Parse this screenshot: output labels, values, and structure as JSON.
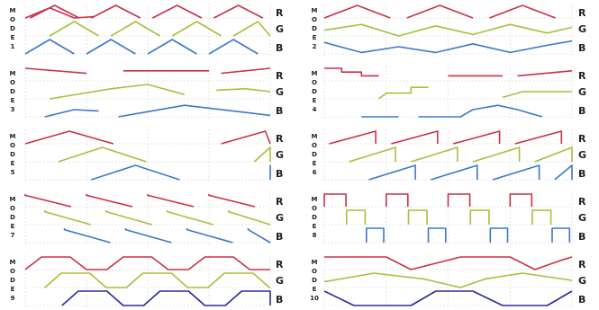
{
  "colors": {
    "R": "#c8304a",
    "G": "#a3c23a",
    "B": "#3a78c8",
    "B_dark": "#2a2a9a",
    "grid": "#bdbdbd"
  },
  "channel_labels": {
    "R": "R",
    "G": "G",
    "B": "B"
  },
  "modes": [
    {
      "id": "1",
      "letters": [
        "M",
        "O",
        "D",
        "E",
        "1"
      ]
    },
    {
      "id": "2",
      "letters": [
        "M",
        "O",
        "D",
        "E",
        "2"
      ]
    },
    {
      "id": "3",
      "letters": [
        "M",
        "O",
        "D",
        "E",
        "3"
      ]
    },
    {
      "id": "4",
      "letters": [
        "M",
        "O",
        "D",
        "E",
        "4"
      ]
    },
    {
      "id": "5",
      "letters": [
        "M",
        "O",
        "D",
        "E",
        "5"
      ]
    },
    {
      "id": "6",
      "letters": [
        "M",
        "O",
        "D",
        "E",
        "6"
      ]
    },
    {
      "id": "7",
      "letters": [
        "M",
        "O",
        "D",
        "E",
        "7"
      ]
    },
    {
      "id": "8",
      "letters": [
        "M",
        "O",
        "D",
        "E",
        "8"
      ]
    },
    {
      "id": "9",
      "letters": [
        "M",
        "O",
        "D",
        "E",
        "9"
      ]
    },
    {
      "id": "10",
      "letters": [
        "M",
        "O",
        "D",
        "E",
        "10"
      ]
    }
  ]
}
